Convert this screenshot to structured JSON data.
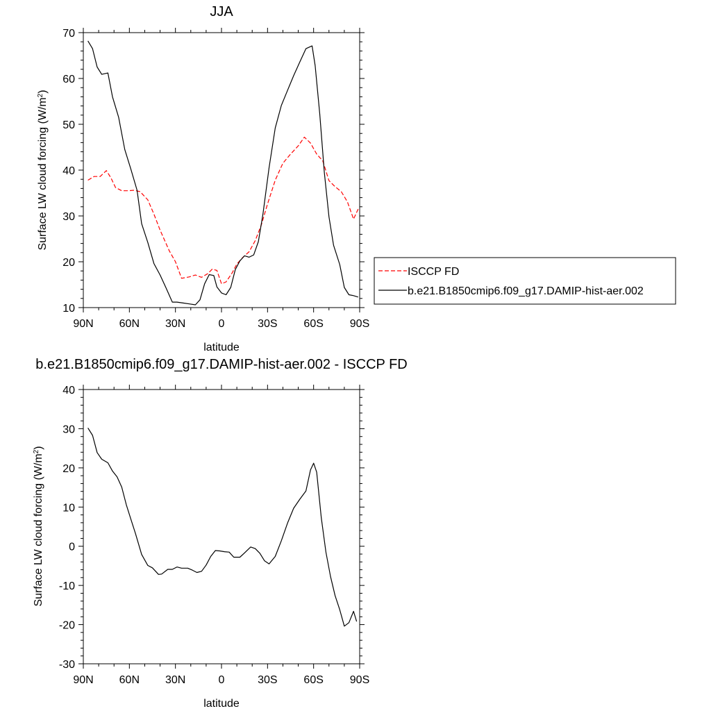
{
  "chart_data": [
    {
      "type": "line",
      "title": "JJA",
      "xlabel": "latitude",
      "ylabel_main": "Surface LW cloud forcing (W/m",
      "ylabel_sup": "2",
      "ylabel_tail": ")",
      "xlim": [
        90,
        -90
      ],
      "ylim": [
        10,
        70
      ],
      "yticks": [
        10,
        20,
        30,
        40,
        50,
        60,
        70
      ],
      "xticks": [
        {
          "value": 90,
          "label": "90N"
        },
        {
          "value": 60,
          "label": "60N"
        },
        {
          "value": 30,
          "label": "30N"
        },
        {
          "value": 0,
          "label": "0"
        },
        {
          "value": -30,
          "label": "30S"
        },
        {
          "value": -60,
          "label": "60S"
        },
        {
          "value": -90,
          "label": "90S"
        }
      ],
      "legend_position": "right",
      "series": [
        {
          "name": "ISCCP FD",
          "color": "#ff0000",
          "dash": "dashed",
          "x": [
            87,
            83,
            79,
            75,
            72,
            69,
            65,
            61,
            57,
            53,
            48,
            44,
            40,
            34,
            30,
            26,
            21,
            17,
            13,
            9,
            6,
            3,
            0,
            -3,
            -7,
            -10,
            -14,
            -18,
            -22,
            -26,
            -30,
            -35,
            -40,
            -45,
            -50,
            -54,
            -58,
            -62,
            -66,
            -70,
            -74,
            -78,
            -82,
            -86,
            -89
          ],
          "y": [
            37.8,
            38.6,
            38.6,
            39.9,
            38.3,
            36.2,
            35.5,
            35.5,
            35.6,
            35.3,
            33.5,
            30.4,
            26.9,
            22.4,
            20.0,
            16.4,
            16.7,
            17.1,
            16.6,
            17.4,
            18.4,
            18.1,
            15.2,
            15.6,
            17.6,
            19.5,
            21.0,
            22.2,
            24.6,
            28.1,
            32.6,
            37.8,
            41.5,
            43.5,
            45.3,
            47.2,
            45.9,
            43.5,
            42.0,
            37.7,
            36.4,
            35.3,
            33.1,
            29.3,
            31.5
          ]
        },
        {
          "name": "b.e21.B1850cmip6.f09_g17.DAMIP-hist-aer.002",
          "color": "#000000",
          "dash": "solid",
          "x": [
            87,
            84,
            81,
            78,
            74,
            71,
            67,
            63,
            59,
            55,
            52,
            48,
            44,
            40,
            36,
            32,
            29,
            25,
            21,
            17,
            14,
            11,
            8,
            5,
            3,
            0,
            -3,
            -6,
            -9,
            -12,
            -15,
            -18,
            -21,
            -24,
            -27,
            -31,
            -35,
            -39,
            -43,
            -47,
            -51,
            -55,
            -59,
            -61,
            -64,
            -67,
            -70,
            -73,
            -77,
            -80,
            -83,
            -86,
            -89
          ],
          "y": [
            68.2,
            66.5,
            62.5,
            60.9,
            61.2,
            56.0,
            51.5,
            44.5,
            40.2,
            35.6,
            28.3,
            24.2,
            19.6,
            17.1,
            14.2,
            11.2,
            11.2,
            11.0,
            10.8,
            10.6,
            11.7,
            15.2,
            17.2,
            17.0,
            14.5,
            13.2,
            12.8,
            14.4,
            18.3,
            20.2,
            21.3,
            21.0,
            21.5,
            24.4,
            30.4,
            40.5,
            49.2,
            54.1,
            57.4,
            60.6,
            63.6,
            66.5,
            67.1,
            62.8,
            52.3,
            39.5,
            29.8,
            23.6,
            19.4,
            14.4,
            12.8,
            12.6,
            12.3
          ]
        }
      ]
    },
    {
      "type": "line",
      "title": "b.e21.B1850cmip6.f09_g17.DAMIP-hist-aer.002 - ISCCP FD",
      "xlabel": "latitude",
      "ylabel_main": "Surface LW cloud forcing (W/m",
      "ylabel_sup": "2",
      "ylabel_tail": ")",
      "xlim": [
        90,
        -90
      ],
      "ylim": [
        -30,
        40
      ],
      "yticks": [
        -30,
        -20,
        -10,
        0,
        10,
        20,
        30,
        40
      ],
      "xticks": [
        {
          "value": 90,
          "label": "90N"
        },
        {
          "value": 60,
          "label": "60N"
        },
        {
          "value": 30,
          "label": "30N"
        },
        {
          "value": 0,
          "label": "0"
        },
        {
          "value": -30,
          "label": "30S"
        },
        {
          "value": -60,
          "label": "60S"
        },
        {
          "value": -90,
          "label": "90S"
        }
      ],
      "series": [
        {
          "name": "",
          "color": "#000000",
          "dash": "solid",
          "x": [
            87,
            84,
            81,
            78,
            74,
            71,
            68,
            65,
            62,
            59,
            56,
            52,
            48,
            45,
            41,
            39,
            35,
            32,
            29,
            26,
            22,
            19,
            16,
            13,
            10,
            7,
            4,
            1,
            -2,
            -5,
            -8,
            -12,
            -15,
            -19,
            -22,
            -25,
            -28,
            -31,
            -35,
            -39,
            -43,
            -47,
            -51,
            -55,
            -58,
            -60,
            -62,
            -65,
            -68,
            -71,
            -74,
            -77,
            -80,
            -83,
            -86,
            -88
          ],
          "y": [
            30.2,
            28.3,
            23.9,
            22.2,
            21.3,
            19.2,
            17.7,
            15.1,
            10.6,
            6.9,
            3.2,
            -2.1,
            -4.9,
            -5.5,
            -7.2,
            -7.1,
            -5.9,
            -5.9,
            -5.3,
            -5.6,
            -5.6,
            -6.1,
            -6.7,
            -6.4,
            -4.8,
            -2.6,
            -1.1,
            -1.2,
            -1.4,
            -1.5,
            -2.8,
            -2.8,
            -1.7,
            -0.2,
            -0.6,
            -1.8,
            -3.7,
            -4.5,
            -2.6,
            1.4,
            5.9,
            9.7,
            12.0,
            14.1,
            19.5,
            21.2,
            18.9,
            7.3,
            -1.5,
            -7.7,
            -12.6,
            -16.2,
            -20.4,
            -19.5,
            -16.6,
            -19.2
          ]
        }
      ]
    }
  ]
}
